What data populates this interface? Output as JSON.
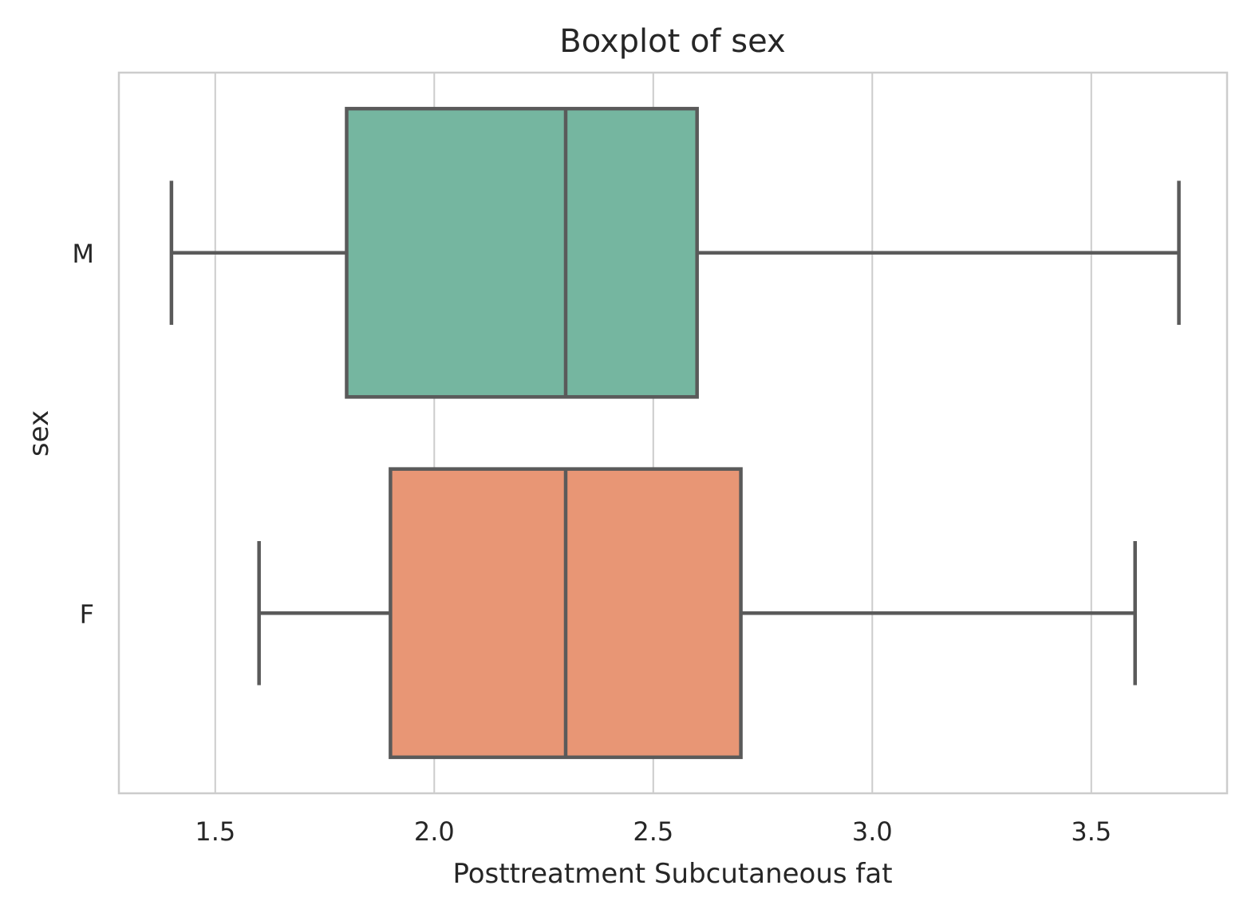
{
  "chart_data": {
    "type": "boxplot",
    "orientation": "horizontal",
    "title": "Boxplot of sex",
    "xlabel": "Posttreatment Subcutaneous fat",
    "ylabel": "sex",
    "xlim": [
      1.28,
      3.81
    ],
    "xticks": [
      1.5,
      2.0,
      2.5,
      3.0,
      3.5
    ],
    "xtick_labels": [
      "1.5",
      "2.0",
      "2.5",
      "3.0",
      "3.5"
    ],
    "grid": "vertical",
    "line_color": "#5a5a5a",
    "series": [
      {
        "name": "M",
        "min": 1.4,
        "q1": 1.8,
        "median": 2.3,
        "q3": 2.6,
        "max": 3.7,
        "color": "#75b6a0"
      },
      {
        "name": "F",
        "min": 1.6,
        "q1": 1.9,
        "median": 2.3,
        "q3": 2.7,
        "max": 3.6,
        "color": "#e89675"
      }
    ]
  }
}
